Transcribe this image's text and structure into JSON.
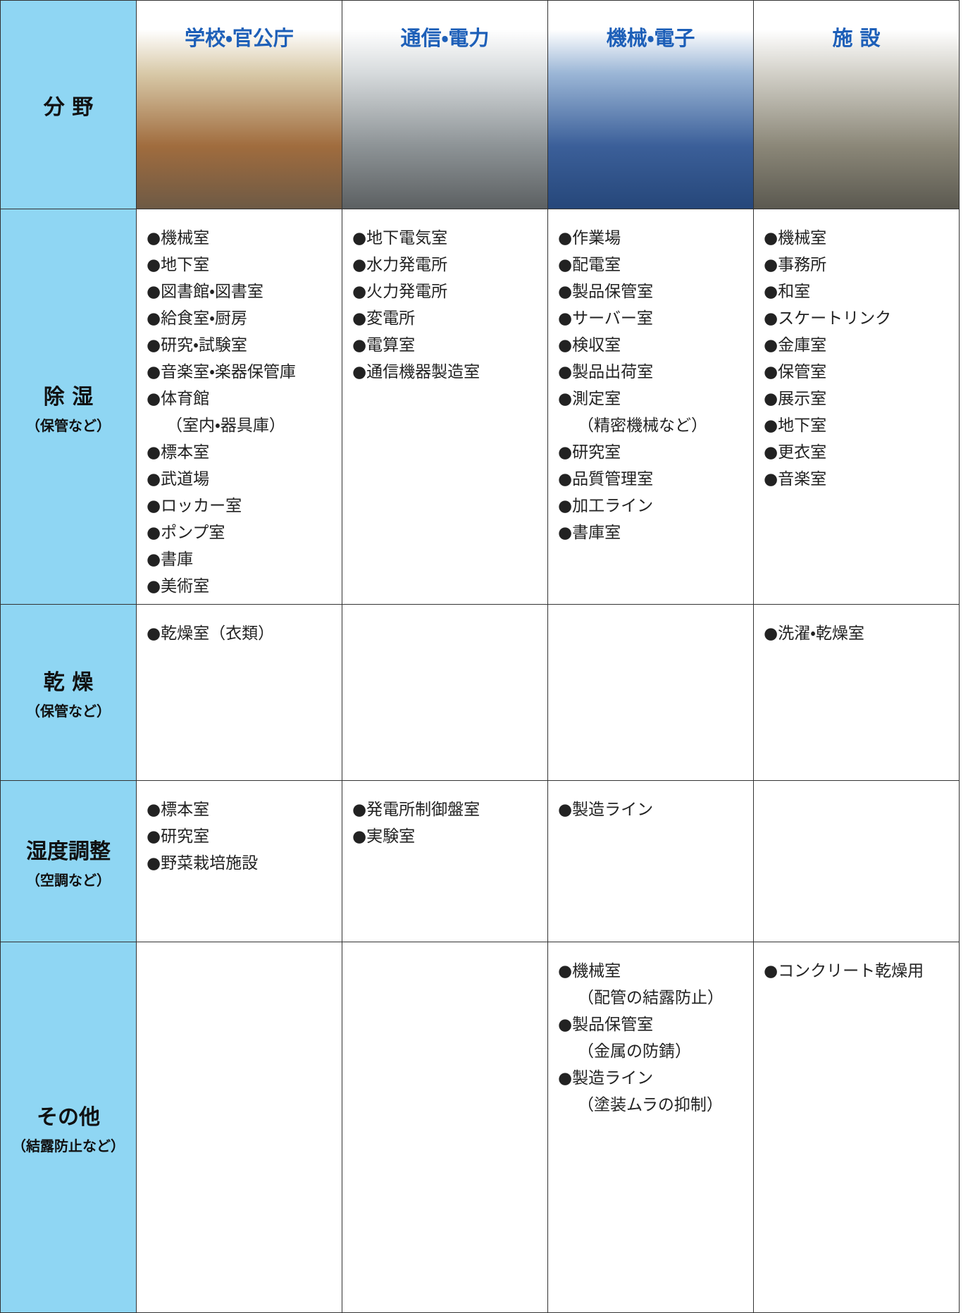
{
  "header": {
    "label": "分 野",
    "columns": [
      "学校・官公庁",
      "通信・電力",
      "機械・電子",
      "施 設"
    ]
  },
  "rows": [
    {
      "label": "除 湿",
      "sublabel": "（保管など）",
      "cells": [
        [
          [
            "●機械室"
          ],
          [
            "●地下室"
          ],
          [
            "●図書館・図書室"
          ],
          [
            "●給食室・厨房"
          ],
          [
            "●研究・試験室"
          ],
          [
            "●音楽室・楽器保管庫"
          ],
          [
            "●体育館",
            "（室内・器具庫）"
          ],
          [
            "●標本室"
          ],
          [
            "●武道場"
          ],
          [
            "●ロッカー室"
          ],
          [
            "●ポンプ室"
          ],
          [
            "●書庫"
          ],
          [
            "●美術室"
          ]
        ],
        [
          [
            "●地下電気室"
          ],
          [
            "●水力発電所"
          ],
          [
            "●火力発電所"
          ],
          [
            "●変電所"
          ],
          [
            "●電算室"
          ],
          [
            "●通信機器製造室"
          ]
        ],
        [
          [
            "●作業場"
          ],
          [
            "●配電室"
          ],
          [
            "●製品保管室"
          ],
          [
            "●サーバー室"
          ],
          [
            "●検収室"
          ],
          [
            "●製品出荷室"
          ],
          [
            "●測定室",
            "（精密機械など）"
          ],
          [
            "●研究室"
          ],
          [
            "●品質管理室"
          ],
          [
            "●加工ライン"
          ],
          [
            "●書庫室"
          ]
        ],
        [
          [
            "●機械室"
          ],
          [
            "●事務所"
          ],
          [
            "●和室"
          ],
          [
            "●スケートリンク"
          ],
          [
            "●金庫室"
          ],
          [
            "●保管室"
          ],
          [
            "●展示室"
          ],
          [
            "●地下室"
          ],
          [
            "●更衣室"
          ],
          [
            "●音楽室"
          ]
        ]
      ]
    },
    {
      "label": "乾 燥",
      "sublabel": "（保管など）",
      "cells": [
        [
          [
            "●乾燥室（衣類）"
          ]
        ],
        [],
        [],
        [
          [
            "●洗濯・乾燥室"
          ]
        ]
      ]
    },
    {
      "label": "湿度調整",
      "sublabel": "（空調など）",
      "cells": [
        [
          [
            "●標本室"
          ],
          [
            "●研究室"
          ],
          [
            "●野菜栽培施設"
          ]
        ],
        [
          [
            "●発電所制御盤室"
          ],
          [
            "●実験室"
          ]
        ],
        [
          [
            "●製造ライン"
          ]
        ],
        []
      ]
    },
    {
      "label": "その他",
      "sublabel": "（結露防止など）",
      "cells": [
        [],
        [],
        [
          [
            "●機械室",
            "（配管の結露防止）"
          ],
          [
            "●製品保管室",
            "（金属の防錆）"
          ],
          [
            "●製造ライン",
            "（塗装ムラの抑制）"
          ]
        ],
        [
          [
            "●コンクリート乾燥用"
          ]
        ]
      ]
    }
  ]
}
